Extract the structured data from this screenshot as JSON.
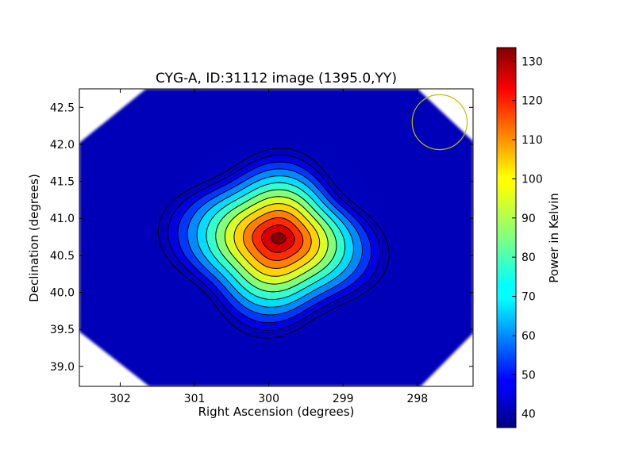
{
  "chart_data": {
    "type": "heatmap",
    "title": "CYG-A, ID:31112 image (1395.0,YY)",
    "xlabel": "Right Ascension (degrees)",
    "ylabel": "Declination (degrees)",
    "xlim": [
      302.55,
      297.25
    ],
    "ylim": [
      38.73,
      42.75
    ],
    "x_ticks": [
      302,
      301,
      300,
      299,
      298
    ],
    "y_ticks": [
      39.0,
      39.5,
      40.0,
      40.5,
      41.0,
      41.5,
      42.0,
      42.5
    ],
    "colormap": "jet",
    "colorbar": {
      "label": "Power in Kelvin",
      "range": [
        36.5,
        133.5
      ],
      "ticks": [
        40,
        50,
        60,
        70,
        80,
        90,
        100,
        110,
        120,
        130
      ]
    },
    "source": {
      "ra_deg": 299.87,
      "dec_deg": 40.73,
      "peak_kelvin": 133,
      "background_kelvin": 38
    },
    "contours": {
      "count": 13,
      "color": "#000000"
    },
    "beam": {
      "ra_deg": 297.7,
      "dec_deg": 42.3,
      "radius_deg": 0.37,
      "color": "#bfbf00"
    },
    "grid": false
  }
}
